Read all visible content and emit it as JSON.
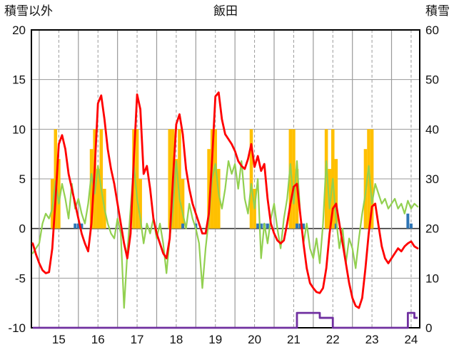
{
  "header": {
    "left_axis_title": "積雪以外",
    "title": "飯田",
    "right_axis_title": "積雪"
  },
  "chart_data": {
    "type": "line",
    "title": "飯田",
    "grid": true,
    "legend_position": "none",
    "left_axis": {
      "label": "積雪以外",
      "min": -10,
      "max": 20,
      "ticks": [
        {
          "label": "20",
          "value": 20
        },
        {
          "label": "15",
          "value": 15
        },
        {
          "label": "10",
          "value": 10
        },
        {
          "label": "5",
          "value": 5
        },
        {
          "label": "0",
          "value": 0
        },
        {
          "label": "-5",
          "value": -5
        },
        {
          "label": "-10",
          "value": -10
        }
      ]
    },
    "right_axis": {
      "label": "積雪",
      "min": 0,
      "max": 60,
      "ticks": [
        {
          "label": "60",
          "value": 60
        },
        {
          "label": "50",
          "value": 50
        },
        {
          "label": "40",
          "value": 40
        },
        {
          "label": "30",
          "value": 30
        },
        {
          "label": "20",
          "value": 20
        },
        {
          "label": "10",
          "value": 10
        },
        {
          "label": "0",
          "value": 0
        }
      ]
    },
    "x_axis": {
      "domain": [
        14.8,
        24.72
      ],
      "start_day": 14.8333,
      "step_hours": 2,
      "tick_labels": [
        {
          "label": "15",
          "pos": 15.5
        },
        {
          "label": "16",
          "pos": 16.5
        },
        {
          "label": "17",
          "pos": 17.5
        },
        {
          "label": "18",
          "pos": 18.5
        },
        {
          "label": "19",
          "pos": 19.5
        },
        {
          "label": "20",
          "pos": 20.5
        },
        {
          "label": "21",
          "pos": 21.5
        },
        {
          "label": "22",
          "pos": 22.5
        },
        {
          "label": "23",
          "pos": 23.5
        },
        {
          "label": "24",
          "pos": 24.5
        }
      ]
    },
    "colors": {
      "red_line": "#FF0000",
      "green_line": "#92D050",
      "orange_area": "#FFC000",
      "blue_bars": "#2E75B6",
      "purple_line": "#7030A0",
      "gridline": "#9A9A9A",
      "zero_line": "#333333",
      "border": "#000000",
      "text": "#111111"
    },
    "series": [
      {
        "name": "orange-sunshine-area",
        "type": "step-area",
        "axis": "left",
        "color": "#FFC000",
        "values": [
          [
            0,
            0
          ],
          [
            0,
            0,
            0,
            0,
            5,
            10,
            7,
            0,
            0,
            0,
            0,
            0
          ],
          [
            0,
            0,
            0,
            0,
            8,
            10,
            6,
            10,
            4,
            0,
            0,
            0
          ],
          [
            0,
            0,
            0,
            0,
            0,
            10,
            10,
            5,
            0,
            0,
            0,
            0
          ],
          [
            0,
            0,
            0,
            0,
            10,
            10,
            7,
            10,
            5,
            0,
            0,
            0
          ],
          [
            0,
            0,
            0,
            0,
            8,
            10,
            10,
            6,
            0,
            0,
            0,
            0
          ],
          [
            0,
            0,
            0,
            0,
            0,
            10,
            4,
            0,
            0,
            0,
            0,
            0
          ],
          [
            0,
            0,
            0,
            0,
            0,
            10,
            10,
            6,
            0,
            0,
            0,
            0
          ],
          [
            0,
            0,
            0,
            0,
            10,
            6,
            10,
            7,
            0,
            0,
            0,
            0
          ],
          [
            0,
            0,
            0,
            0,
            8,
            10,
            10,
            0,
            0,
            0,
            0,
            0
          ],
          [
            0,
            0,
            0,
            0,
            0,
            0,
            0,
            0,
            0
          ]
        ]
      },
      {
        "name": "blue-precip-bars",
        "type": "bar",
        "axis": "left",
        "color": "#2E75B6",
        "values": [
          [
            0,
            0
          ],
          [
            0,
            0,
            0,
            0,
            0,
            0,
            0,
            0,
            0,
            0,
            0,
            0.5
          ],
          [
            0.5,
            0.5,
            0,
            0,
            0,
            0,
            0,
            0,
            0,
            0,
            0,
            0
          ],
          [
            0,
            0,
            0,
            0,
            0,
            0,
            0,
            0,
            0,
            0,
            0,
            0
          ],
          [
            0,
            0,
            0,
            0,
            0,
            0,
            0,
            0,
            0.5,
            0,
            0,
            0
          ],
          [
            0.5,
            0,
            0,
            0,
            0,
            0,
            0,
            0,
            0,
            0,
            0,
            0
          ],
          [
            0,
            0,
            0,
            0,
            0,
            0,
            0,
            0.5,
            0.5,
            0.5,
            0.5,
            0
          ],
          [
            0,
            0,
            0,
            0,
            0,
            0,
            0,
            0.5,
            0.5,
            0.5,
            0,
            0
          ],
          [
            0,
            0,
            0,
            0,
            0,
            0,
            0,
            0.5,
            0,
            0,
            0,
            0
          ],
          [
            0,
            0,
            0,
            0,
            0,
            0,
            0,
            0,
            0,
            0,
            0,
            0
          ],
          [
            0,
            0,
            0,
            0,
            0,
            1.5,
            0.5,
            0,
            0
          ]
        ]
      },
      {
        "name": "green-line",
        "type": "line",
        "axis": "left",
        "color": "#92D050",
        "width": 2.2,
        "values": [
          [
            -2.5,
            -2.0
          ],
          [
            -1.5,
            0.5,
            1.5,
            1.0,
            2.0,
            4.8,
            2.5,
            4.5,
            3.0,
            1.0,
            4.5,
            2.0
          ],
          [
            3.0,
            1.5,
            0.5,
            2.5,
            5.5,
            3.5,
            6.3,
            4.0,
            2.0,
            0.5,
            -0.5,
            -1.0
          ],
          [
            1.0,
            -0.5,
            -8.0,
            -2.5,
            2.0,
            6.5,
            3.0,
            1.0,
            -1.5,
            0.5,
            -0.5,
            1.0
          ],
          [
            -1.0,
            0.5,
            -1.5,
            -4.5,
            -1.0,
            2.0,
            6.8,
            3.0,
            1.5,
            0.0,
            2.5,
            1.0
          ],
          [
            0.0,
            -1.5,
            -6.0,
            -2.0,
            1.0,
            5.0,
            6.5,
            3.5,
            2.0,
            4.0,
            6.8,
            5.5
          ],
          [
            6.5,
            4.0,
            6.8,
            3.0,
            1.5,
            4.5,
            2.0,
            5.0,
            -3.0,
            0.5,
            -1.5,
            1.0
          ],
          [
            2.5,
            0.0,
            -2.0,
            1.0,
            3.0,
            6.5,
            2.5,
            6.8,
            1.5,
            -1.5,
            0.5,
            -2.0
          ],
          [
            -3.0,
            -1.0,
            -3.5,
            0.5,
            6.8,
            2.0,
            5.0,
            1.0,
            -2.0,
            0.0,
            -3.5,
            -1.0
          ],
          [
            -2.0,
            -4.0,
            -1.0,
            1.5,
            3.5,
            6.3,
            2.5,
            4.5,
            3.5,
            2.5,
            3.0,
            2.0
          ],
          [
            2.5,
            3.0,
            2.0,
            2.5,
            1.5,
            2.8,
            2.0,
            2.5,
            2.2
          ]
        ]
      },
      {
        "name": "red-temperature-line",
        "type": "line",
        "axis": "left",
        "color": "#FF0000",
        "width": 2.8,
        "values": [
          [
            -1.5,
            -2.6
          ],
          [
            -3.5,
            -4.2,
            -4.5,
            -4.4,
            -2.0,
            3.0,
            8.5,
            9.4,
            8.0,
            5.5,
            4.0,
            2.5
          ],
          [
            1.0,
            -0.5,
            -1.5,
            -2.3,
            0.5,
            6.0,
            12.6,
            13.4,
            11.0,
            8.0,
            6.0,
            4.5
          ],
          [
            2.5,
            0.5,
            -1.5,
            -3.0,
            -0.5,
            7.0,
            13.5,
            12.0,
            5.5,
            6.3,
            4.0,
            1.0
          ],
          [
            -0.5,
            -1.5,
            -2.5,
            -3.0,
            -1.0,
            5.0,
            10.5,
            11.5,
            9.5,
            6.0,
            4.0,
            2.5
          ],
          [
            1.5,
            0.5,
            -0.5,
            -0.5,
            1.5,
            7.0,
            13.3,
            13.7,
            11.0,
            9.5,
            9.0,
            8.5
          ],
          [
            7.8,
            6.8,
            6.3,
            6.0,
            7.0,
            8.5,
            6.2,
            7.3,
            5.8,
            6.5,
            3.0,
            0.5
          ],
          [
            -0.5,
            -1.2,
            -1.5,
            -1.2,
            0.5,
            2.5,
            4.2,
            4.5,
            1.5,
            -1.5,
            -4.0,
            -5.5
          ],
          [
            -6.0,
            -6.4,
            -6.5,
            -6.0,
            -4.0,
            -0.5,
            2.0,
            2.5,
            0.5,
            -1.5,
            -3.5,
            -5.5
          ],
          [
            -7.0,
            -7.8,
            -8.0,
            -7.0,
            -4.0,
            -0.5,
            2.2,
            2.5,
            0.3,
            -1.8,
            -3.0,
            -3.5
          ],
          [
            -3.0,
            -2.5,
            -2.0,
            -2.3,
            -1.8,
            -1.5,
            -1.3,
            -1.8,
            -2.0
          ]
        ]
      },
      {
        "name": "purple-snow-depth-line",
        "type": "step-line",
        "axis": "right",
        "color": "#7030A0",
        "width": 2.8,
        "values": [
          [
            0,
            0
          ],
          [
            0,
            0,
            0,
            0,
            0,
            0,
            0,
            0,
            0,
            0,
            0,
            0
          ],
          [
            0,
            0,
            0,
            0,
            0,
            0,
            0,
            0,
            0,
            0,
            0,
            0
          ],
          [
            0,
            0,
            0,
            0,
            0,
            0,
            0,
            0,
            0,
            0,
            0,
            0
          ],
          [
            0,
            0,
            0,
            0,
            0,
            0,
            0,
            0,
            0,
            0,
            0,
            0
          ],
          [
            0,
            0,
            0,
            0,
            0,
            0,
            0,
            0,
            0,
            0,
            0,
            0
          ],
          [
            0,
            0,
            0,
            0,
            0,
            0,
            0,
            0,
            0,
            0,
            0,
            0
          ],
          [
            0,
            0,
            0,
            0,
            0,
            0,
            0,
            3,
            3,
            3,
            3,
            3
          ],
          [
            3,
            3,
            2,
            2,
            2,
            2,
            0,
            0,
            0,
            0,
            0,
            0
          ],
          [
            0,
            0,
            0,
            0,
            0,
            0,
            0,
            0,
            0,
            0,
            0,
            0
          ],
          [
            0,
            0,
            0,
            0,
            0,
            3,
            3,
            2,
            2
          ]
        ]
      }
    ]
  }
}
